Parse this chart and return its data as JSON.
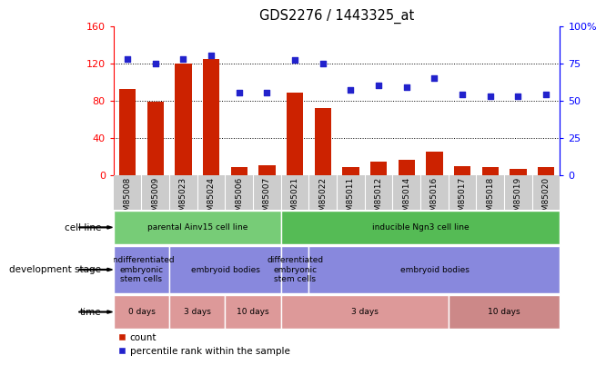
{
  "title": "GDS2276 / 1443325_at",
  "samples": [
    "GSM85008",
    "GSM85009",
    "GSM85023",
    "GSM85024",
    "GSM85006",
    "GSM85007",
    "GSM85021",
    "GSM85022",
    "GSM85011",
    "GSM85012",
    "GSM85014",
    "GSM85016",
    "GSM85017",
    "GSM85018",
    "GSM85019",
    "GSM85020"
  ],
  "counts": [
    92,
    79,
    120,
    125,
    8,
    10,
    88,
    72,
    8,
    14,
    16,
    25,
    9,
    8,
    7,
    8
  ],
  "percentiles": [
    78,
    75,
    78,
    80,
    55,
    55,
    77,
    75,
    57,
    60,
    59,
    65,
    54,
    53,
    53,
    54
  ],
  "left_ylim": [
    0,
    160
  ],
  "left_yticks": [
    0,
    40,
    80,
    120,
    160
  ],
  "right_ylim": [
    0,
    100
  ],
  "right_yticks": [
    0,
    25,
    50,
    75,
    100
  ],
  "bar_color": "#cc2200",
  "dot_color": "#2222cc",
  "plot_bg": "#ffffff",
  "tick_area_bg": "#cccccc",
  "cell_line_groups": [
    {
      "label": "parental Ainv15 cell line",
      "start": 0,
      "end": 6,
      "color": "#77cc77"
    },
    {
      "label": "inducible Ngn3 cell line",
      "start": 6,
      "end": 16,
      "color": "#55bb55"
    }
  ],
  "dev_stage_groups": [
    {
      "label": "undifferentiated\nembryonic\nstem cells",
      "start": 0,
      "end": 2,
      "color": "#8888dd"
    },
    {
      "label": "embryoid bodies",
      "start": 2,
      "end": 6,
      "color": "#8888dd"
    },
    {
      "label": "differentiated\nembryonic\nstem cells",
      "start": 6,
      "end": 7,
      "color": "#8888dd"
    },
    {
      "label": "embryoid bodies",
      "start": 7,
      "end": 16,
      "color": "#8888dd"
    }
  ],
  "time_groups": [
    {
      "label": "0 days",
      "start": 0,
      "end": 2,
      "color": "#dd9999"
    },
    {
      "label": "3 days",
      "start": 2,
      "end": 4,
      "color": "#dd9999"
    },
    {
      "label": "10 days",
      "start": 4,
      "end": 6,
      "color": "#dd9999"
    },
    {
      "label": "3 days",
      "start": 6,
      "end": 12,
      "color": "#dd9999"
    },
    {
      "label": "10 days",
      "start": 12,
      "end": 16,
      "color": "#cc8888"
    }
  ],
  "row_labels": [
    "cell line",
    "development stage",
    "time"
  ],
  "legend_bar_label": "count",
  "legend_dot_label": "percentile rank within the sample",
  "grid_yticks": [
    40,
    80,
    120
  ]
}
